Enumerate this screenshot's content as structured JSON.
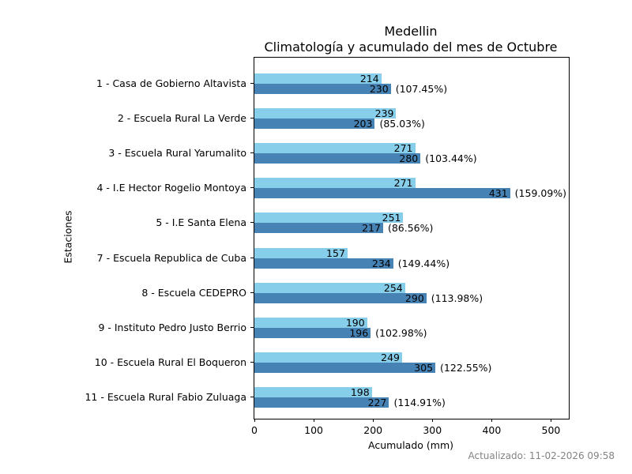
{
  "title": {
    "line1": "Medellin",
    "line2": "Climatología y acumulado del mes de Octubre"
  },
  "footer": {
    "updated": "Actualizado: 11-02-2026 09:58"
  },
  "colors": {
    "climatology_bar": "#87CEEB",
    "accumulated_bar": "#4682B4",
    "axis": "#000000",
    "text": "#000000",
    "footer_text": "#848484",
    "background": "#ffffff"
  },
  "chart_data": {
    "type": "bar",
    "orientation": "horizontal",
    "title": "Medellin\nClimatología y acumulado del mes de Octubre",
    "xlabel": "Acumulado (mm)",
    "ylabel": "Estaciones",
    "xlim": [
      0,
      530
    ],
    "xticks": [
      0,
      100,
      200,
      300,
      400,
      500
    ],
    "grid": false,
    "legend_position": "none",
    "categories": [
      "1 - Casa de Gobierno Altavista",
      "2 - Escuela Rural La Verde",
      "3 - Escuela Rural Yarumalito",
      "4 - I.E Hector Rogelio Montoya",
      "5 - I.E Santa Elena",
      "7 - Escuela Republica de Cuba",
      "8 - Escuela CEDEPRO",
      "9 - Instituto Pedro Justo Berrio",
      "10 - Escuela Rural El Boqueron",
      "11 - Escuela Rural Fabio Zuluaga"
    ],
    "series": [
      {
        "name": "Climatología",
        "color": "#87CEEB",
        "values": [
          214,
          239,
          271,
          271,
          251,
          157,
          254,
          190,
          249,
          198
        ]
      },
      {
        "name": "Acumulado",
        "color": "#4682B4",
        "values": [
          230,
          203,
          280,
          431,
          217,
          234,
          290,
          196,
          305,
          227
        ]
      }
    ],
    "percent_labels": [
      "(107.45%)",
      "(85.03%)",
      "(103.44%)",
      "(159.09%)",
      "(86.56%)",
      "(149.44%)",
      "(113.98%)",
      "(102.98%)",
      "(122.55%)",
      "(114.91%)"
    ]
  }
}
